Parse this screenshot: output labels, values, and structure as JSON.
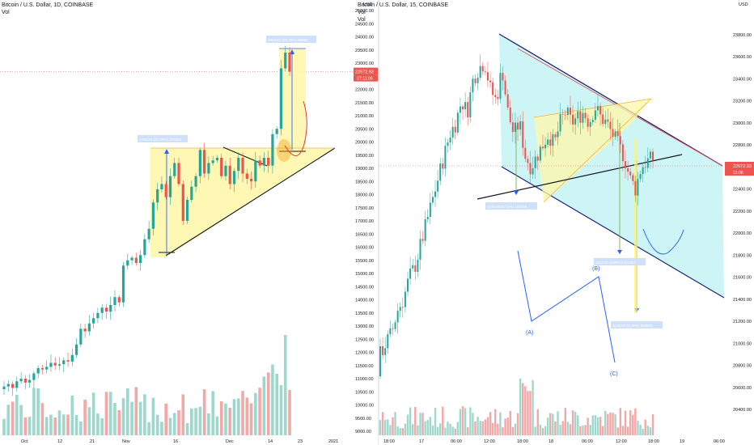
{
  "colors": {
    "up": "#26a69a",
    "down": "#ef5350",
    "vol_up": "#9ed8cc",
    "vol_down": "#f4a7a7",
    "price_badge": "#ef5350",
    "axis_text": "#131722",
    "grid": "#f0f3fa",
    "triangle_fill": "#fff7a8",
    "wedge_fill": "#d4f7ef",
    "channel_fill": "#c6f3f5",
    "measure_blue": "#2962ff"
  },
  "left_chart": {
    "symbol": "Bitcoin / U.S. Dollar, 1D, COINBASE",
    "vol_label": "Vol",
    "price_label": "22672.93",
    "countdown": "07:11:06",
    "annotation_top": "3983.57 (20.78%) 39860",
    "annotation_mid": "3768.06 (23.06%) 376806",
    "y_ticks": [
      "25000.00",
      "24500.00",
      "24000.00",
      "23500.00",
      "23000.00",
      "22500.00",
      "22000.00",
      "21500.00",
      "21000.00",
      "20500.00",
      "20000.00",
      "19500.00",
      "19000.00",
      "18500.00",
      "18000.00",
      "17500.00",
      "17000.00",
      "16500.00",
      "16000.00",
      "15500.00",
      "15000.00",
      "14500.00",
      "14000.00",
      "13500.00",
      "13000.00",
      "12500.00",
      "12000.00",
      "11500.00",
      "11000.00",
      "10500.00",
      "10000.00",
      "9500.00",
      "9000.00"
    ],
    "x_ticks": [
      "Oct",
      "12",
      "21",
      "Nov",
      "16",
      "Dec",
      "14",
      "23",
      "2021"
    ],
    "currency": "USD"
  },
  "right_chart": {
    "symbol": "Bitcoin / U.S. Dollar, 15, COINBASE",
    "vol_label": "Vol",
    "vol_label2": "Vol",
    "currency": "USD",
    "price_label": "22672.93",
    "countdown": "11:06",
    "wave_labels": [
      "(A)",
      "(B)",
      "(C)"
    ],
    "measure_1": "1100.29 (5.71%) 110029",
    "measure_2": "1154.00 (4.99%) 115400",
    "measure_3": "1036.00 (4.48%) 103600",
    "y_ticks": [
      "23800.00",
      "23600.00",
      "23400.00",
      "23200.00",
      "23000.00",
      "22800.00",
      "22600.00",
      "22400.00",
      "22200.00",
      "22000.00",
      "21800.00",
      "21600.00",
      "21400.00",
      "21200.00",
      "21000.00",
      "20800.00",
      "20600.00",
      "20400.00"
    ],
    "x_ticks": [
      "18:00",
      "17",
      "06:00",
      "12:00",
      "18:00",
      "18",
      "06:00",
      "12:00",
      "18:00",
      "19",
      "06:00"
    ]
  },
  "chart_data": [
    {
      "type": "candlestick",
      "title": "Bitcoin / U.S. Dollar, 1D, COINBASE",
      "ylabel": "USD",
      "ylim": [
        9000,
        25000
      ],
      "x_range_days": [
        "2020-09-26",
        "2021-01-03"
      ],
      "series": [
        {
          "name": "BTCUSD",
          "close_trend": [
            10700,
            10800,
            10650,
            10900,
            11000,
            10850,
            10950,
            11200,
            11400,
            11350,
            11450,
            11600,
            11500,
            11550,
            11700,
            11650,
            11900,
            12300,
            12900,
            12800,
            13100,
            13300,
            13500,
            13700,
            13550,
            13800,
            14100,
            13900,
            15300,
            15500,
            15600,
            15400,
            15700,
            16300,
            16700,
            17700,
            18200,
            18400,
            17900,
            18700,
            19200,
            18400,
            17000,
            17800,
            18300,
            18700,
            19700,
            18800,
            19200,
            19300,
            19400,
            18700,
            19100,
            18400,
            18900,
            19400,
            18800,
            18600,
            18500,
            19300,
            19100,
            19400,
            19100,
            20300,
            20500,
            22800,
            23400,
            22673
          ]
        }
      ]
    },
    {
      "type": "candlestick",
      "title": "Bitcoin / U.S. Dollar, 15, COINBASE",
      "ylabel": "USD",
      "ylim": [
        20200,
        24000
      ],
      "x_range": [
        "16 14:00",
        "19 06:00"
      ],
      "series": [
        {
          "name": "BTCUSD",
          "close_trend": [
            20900,
            21000,
            21100,
            21300,
            21400,
            21600,
            21700,
            21900,
            22100,
            22300,
            22500,
            22700,
            22900,
            23000,
            23200,
            23100,
            23400,
            23500,
            23550,
            23300,
            23200,
            23500,
            23100,
            22900,
            23000,
            22700,
            22600,
            22700,
            22800,
            22900,
            22800,
            23000,
            23100,
            23000,
            23050,
            23100,
            23000,
            23150,
            23050,
            23000,
            22900,
            22800,
            22700,
            22500,
            22400,
            22600,
            22650,
            22673
          ]
        }
      ]
    }
  ]
}
